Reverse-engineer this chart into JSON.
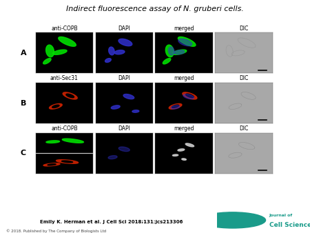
{
  "title": "Indirect fluorescence assay of N. gruberi cells.",
  "title_fontsize": 8,
  "bg_color": "#ffffff",
  "citation": "Emily K. Herman et al. J Cell Sci 2018;131:jcs213306",
  "copyright": "© 2018. Published by The Company of Biologists Ltd",
  "label_fontsize": 5.5,
  "row_label_fontsize": 8,
  "panel_black": "#000000",
  "panel_gray": "#a8a8a8",
  "green": "#00dd00",
  "blue": "#3030cc",
  "red": "#cc2200",
  "white_ish": "#cccccc"
}
